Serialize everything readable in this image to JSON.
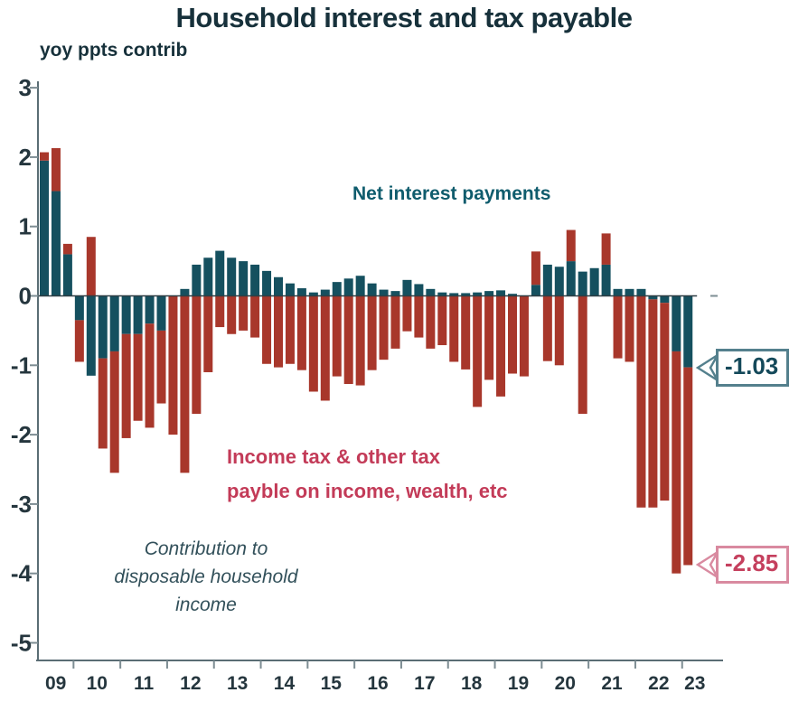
{
  "page": {
    "title": "Household interest and tax payable",
    "subtitle": "yoy ppts contrib"
  },
  "colors": {
    "title_text": "#17313b",
    "axis_line": "#5a6d74",
    "tick_label_text": "#25363e",
    "interest_teal": "#15505f",
    "tax_red": "#a8372b",
    "interest_label_text": "#0f5c6d",
    "tax_label_text": "#c33b58",
    "note_text": "#32505a",
    "zero_line": "#2e3d43"
  },
  "chart_data": {
    "type": "bar",
    "stacked": true,
    "title": "Household interest and tax payable",
    "subtitle": "yoy ppts contrib",
    "unit": "yoy percentage points contribution",
    "x_labels": [
      "09",
      "10",
      "11",
      "12",
      "13",
      "14",
      "15",
      "16",
      "17",
      "18",
      "19",
      "20",
      "21",
      "22",
      "23"
    ],
    "bars": 56,
    "bars_per_year": 4,
    "first_year_bar_count": 3,
    "ylim": [
      -5.3,
      3.2
    ],
    "yticks": [
      3,
      2,
      1,
      0,
      -1,
      -2,
      -3,
      -4,
      -5
    ],
    "grid": false,
    "legend_position": "in-plot text annotations",
    "series": [
      {
        "name": "Net interest payments",
        "color": "#15505f",
        "values": [
          1.95,
          1.51,
          0.6,
          -0.35,
          -1.15,
          -0.9,
          -0.8,
          -0.55,
          -0.55,
          -0.4,
          -0.5,
          0.0,
          0.1,
          0.45,
          0.55,
          0.65,
          0.55,
          0.5,
          0.45,
          0.36,
          0.27,
          0.18,
          0.11,
          0.05,
          0.09,
          0.2,
          0.25,
          0.29,
          0.18,
          0.09,
          0.07,
          0.23,
          0.17,
          0.1,
          0.05,
          0.04,
          0.04,
          0.05,
          0.07,
          0.08,
          0.03,
          0.0,
          0.16,
          0.45,
          0.42,
          0.5,
          0.35,
          0.4,
          0.45,
          0.1,
          0.1,
          0.1,
          -0.05,
          -0.1,
          -0.8,
          -1.03
        ]
      },
      {
        "name": "Income tax & other tax payble on income, wealth, etc",
        "color": "#a8372b",
        "values": [
          0.12,
          0.62,
          0.15,
          -0.6,
          0.85,
          -1.3,
          -1.75,
          -1.5,
          -1.25,
          -1.5,
          -1.05,
          -2.0,
          -2.55,
          -1.7,
          -1.1,
          -0.45,
          -0.55,
          -0.5,
          -0.6,
          -0.98,
          -1.03,
          -0.98,
          -1.07,
          -1.38,
          -1.51,
          -1.16,
          -1.27,
          -1.29,
          -1.07,
          -0.92,
          -0.76,
          -0.51,
          -0.6,
          -0.76,
          -0.71,
          -0.95,
          -1.06,
          -1.6,
          -1.21,
          -1.45,
          -1.12,
          -1.16,
          0.48,
          -0.94,
          -1.0,
          0.45,
          -1.7,
          0.0,
          0.45,
          -0.9,
          -0.95,
          -3.05,
          -3.0,
          -2.85,
          -3.2,
          -2.85
        ]
      }
    ],
    "annotations": {
      "interest_label": "Net interest payments",
      "tax_label_line1": "Income tax & other tax",
      "tax_label_line2": "payble on income, wealth, etc",
      "note_line1": "Contribution to",
      "note_line2": "disposable household",
      "note_line3": "income"
    },
    "callouts": [
      {
        "value": "-1.03",
        "series": "Net interest payments",
        "points_at": -1.03,
        "color": "#14495a",
        "border": "#54808d"
      },
      {
        "value": "-2.85",
        "series": "Income tax & other tax payble on income, wealth, etc",
        "points_at": -3.88,
        "color": "#c5405e",
        "border": "#d98aa0"
      }
    ]
  }
}
